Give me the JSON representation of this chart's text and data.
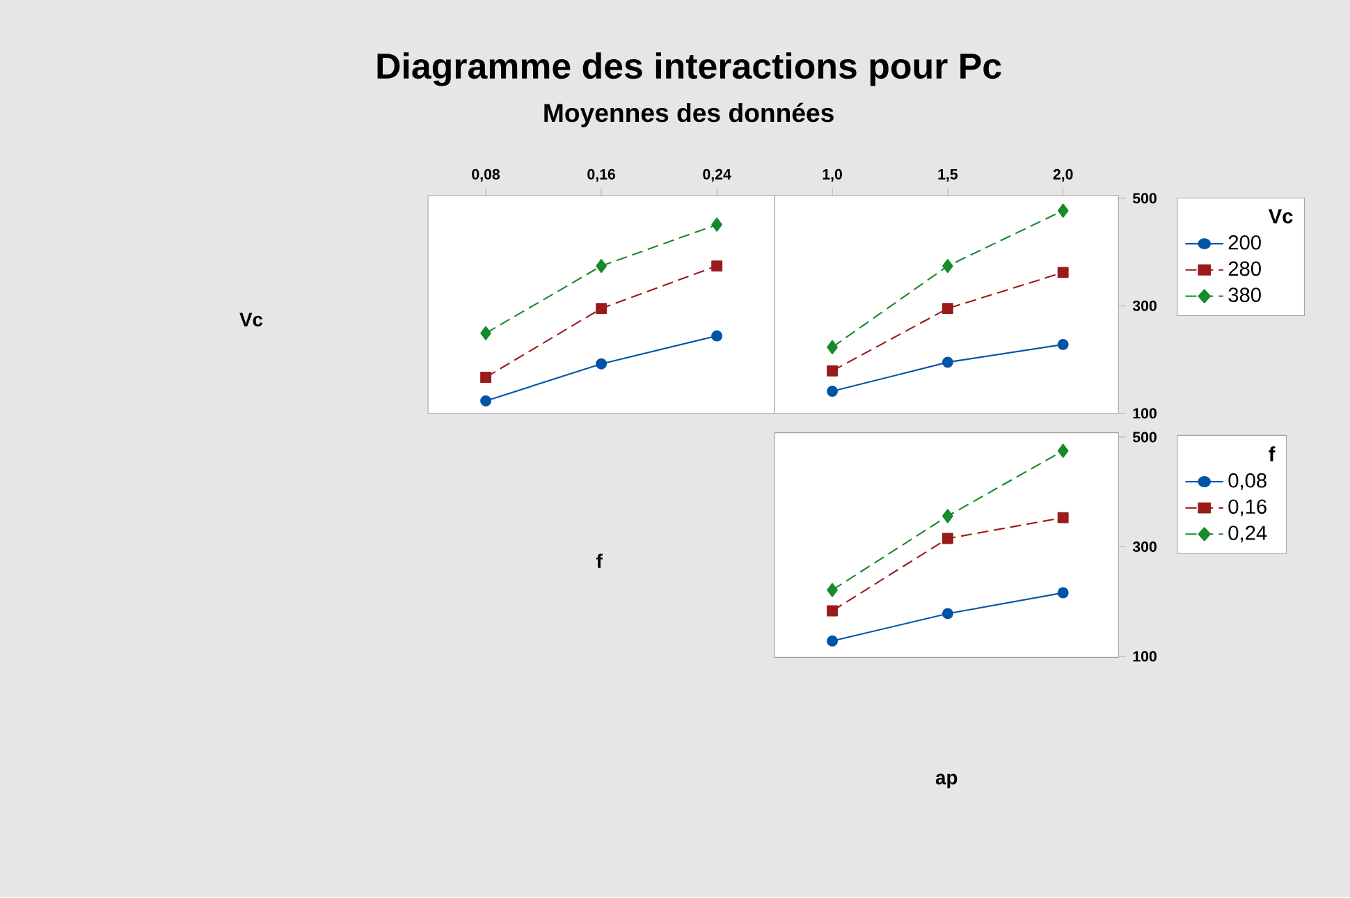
{
  "chart_data": [
    {
      "type": "line",
      "title": "Diagramme des interactions pour Pc",
      "subtitle": "Moyennes des données",
      "ylabel": "Vc",
      "x": [
        0.08,
        0.16,
        0.24
      ],
      "xlim": [
        0.04,
        0.28
      ],
      "xticks": [
        {
          "value": 0.08,
          "label": "0,08"
        },
        {
          "value": 0.16,
          "label": "0,16"
        },
        {
          "value": 0.24,
          "label": "0,24"
        }
      ],
      "ylim": [
        100,
        505
      ],
      "yticks": [
        100,
        300,
        500
      ],
      "tick_labels": "x",
      "series": [
        {
          "color": "#0054a6",
          "marker": "circle",
          "line_style": "solid",
          "values": [
            123,
            192,
            244
          ]
        },
        {
          "color": "#9b1b1b",
          "marker": "square",
          "line_style": "dashed",
          "values": [
            167,
            295,
            374
          ]
        },
        {
          "color": "#178a2c",
          "marker": "diamond",
          "line_style": "dashed",
          "values": [
            249,
            374,
            451
          ]
        }
      ]
    },
    {
      "type": "line",
      "x": [
        1.0,
        1.5,
        2.0
      ],
      "xlim": [
        0.75,
        2.24
      ],
      "xticks": [
        {
          "value": 1.0,
          "label": "1,0"
        },
        {
          "value": 1.5,
          "label": "1,5"
        },
        {
          "value": 2.0,
          "label": "2,0"
        }
      ],
      "ylim": [
        100,
        505
      ],
      "yticks": [
        100,
        300,
        500
      ],
      "legend": "right",
      "legend_title": "Vc",
      "series": [
        {
          "name": "200",
          "color": "#0054a6",
          "marker": "circle",
          "line_style": "solid",
          "values": [
            141,
            195,
            228
          ]
        },
        {
          "name": "280",
          "color": "#9b1b1b",
          "marker": "square",
          "line_style": "dashed",
          "values": [
            179,
            295,
            362
          ]
        },
        {
          "name": "380",
          "color": "#178a2c",
          "marker": "diamond",
          "line_style": "dashed",
          "values": [
            223,
            374,
            477
          ]
        }
      ]
    },
    {
      "type": "line",
      "ylabel": "f",
      "xlabel": "ap",
      "x": [
        1.0,
        1.5,
        2.0
      ],
      "xlim": [
        0.75,
        2.24
      ],
      "xticks": [
        {
          "value": 1.0,
          "label": null
        },
        {
          "value": 1.5,
          "label": null
        },
        {
          "value": 2.0,
          "label": null
        }
      ],
      "ylim": [
        98,
        508
      ],
      "yticks": [
        100,
        300,
        500
      ],
      "tick_labels": "y",
      "legend": "right",
      "legend_title": "f",
      "series": [
        {
          "name": "0,08",
          "color": "#0054a6",
          "marker": "circle",
          "line_style": "solid",
          "values": [
            128,
            178,
            216
          ]
        },
        {
          "name": "0,16",
          "color": "#9b1b1b",
          "marker": "square",
          "line_style": "dashed",
          "values": [
            183,
            315,
            353
          ]
        },
        {
          "name": "0,24",
          "color": "#178a2c",
          "marker": "diamond",
          "line_style": "dashed",
          "values": [
            221,
            356,
            475
          ]
        }
      ]
    }
  ]
}
